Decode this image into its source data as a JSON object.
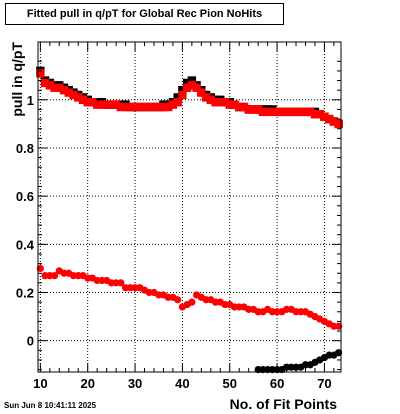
{
  "title": "Fitted pull in q/pT for Global Rec Pion NoHits",
  "footer_date": "Sun Jun  8 10:41:11 2025",
  "chart_data": {
    "type": "scatter",
    "title": "Fitted pull in q/pT for Global Rec Pion NoHits",
    "xlabel": "No. of Fit Points",
    "ylabel": "pull in q/pT",
    "xlim": [
      9.5,
      73.5
    ],
    "ylim": [
      -0.13,
      1.24
    ],
    "x_ticks": [
      10,
      20,
      30,
      40,
      50,
      60,
      70
    ],
    "y_ticks": [
      0,
      0.2,
      0.4,
      0.6,
      0.8,
      1
    ],
    "y_tick_labels": [
      "0",
      "0.2",
      "0.4",
      "0.6",
      "0.8",
      "1"
    ],
    "grid": true,
    "series": [
      {
        "color": "#000000",
        "marker": "square",
        "x": [
          10,
          11,
          12,
          13,
          14,
          15,
          16,
          17,
          18,
          19,
          20,
          21,
          22,
          23,
          24,
          25,
          26,
          27,
          28,
          29,
          30,
          31,
          32,
          33,
          34,
          35,
          36,
          37,
          38,
          39,
          40,
          41,
          42,
          43,
          44,
          45,
          46,
          47,
          48,
          49,
          50,
          51,
          52,
          53,
          54,
          55,
          56,
          57,
          58,
          59,
          60,
          61,
          62,
          63,
          64,
          65,
          66,
          67,
          68,
          69,
          70,
          71,
          72,
          73
        ],
        "y": [
          1.12,
          1.08,
          1.07,
          1.06,
          1.06,
          1.05,
          1.04,
          1.03,
          1.02,
          1.01,
          1.0,
          0.99,
          0.99,
          0.99,
          0.98,
          0.98,
          0.98,
          0.98,
          0.98,
          0.97,
          0.97,
          0.97,
          0.97,
          0.97,
          0.97,
          0.97,
          0.98,
          0.98,
          0.99,
          1.01,
          1.04,
          1.07,
          1.08,
          1.06,
          1.04,
          1.02,
          1.01,
          1.0,
          1.0,
          0.99,
          0.99,
          0.98,
          0.97,
          0.97,
          0.96,
          0.96,
          0.96,
          0.96,
          0.96,
          0.96,
          0.95,
          0.95,
          0.95,
          0.95,
          0.95,
          0.95,
          0.95,
          0.95,
          0.95,
          0.94,
          0.93,
          0.92,
          0.91,
          0.9
        ]
      },
      {
        "color": "#ff0000",
        "marker": "square",
        "x": [
          10,
          11,
          12,
          13,
          14,
          15,
          16,
          17,
          18,
          19,
          20,
          21,
          22,
          23,
          24,
          25,
          26,
          27,
          28,
          29,
          30,
          31,
          32,
          33,
          34,
          35,
          36,
          37,
          38,
          39,
          40,
          41,
          42,
          43,
          44,
          45,
          46,
          47,
          48,
          49,
          50,
          51,
          52,
          53,
          54,
          55,
          56,
          57,
          58,
          59,
          60,
          61,
          62,
          63,
          64,
          65,
          66,
          67,
          68,
          69,
          70,
          71,
          72,
          73
        ],
        "y": [
          1.11,
          1.07,
          1.06,
          1.05,
          1.05,
          1.04,
          1.03,
          1.02,
          1.01,
          1.0,
          0.99,
          0.99,
          0.98,
          0.98,
          0.98,
          0.98,
          0.98,
          0.97,
          0.97,
          0.97,
          0.97,
          0.97,
          0.97,
          0.97,
          0.97,
          0.97,
          0.97,
          0.97,
          0.98,
          0.99,
          1.02,
          1.05,
          1.06,
          1.05,
          1.03,
          1.01,
          1.0,
          0.99,
          0.99,
          0.99,
          0.98,
          0.98,
          0.97,
          0.97,
          0.96,
          0.96,
          0.96,
          0.95,
          0.95,
          0.95,
          0.95,
          0.95,
          0.95,
          0.95,
          0.95,
          0.95,
          0.95,
          0.95,
          0.94,
          0.94,
          0.93,
          0.92,
          0.91,
          0.9
        ]
      },
      {
        "color": "#ff0000",
        "marker": "circle",
        "x": [
          10,
          11,
          12,
          13,
          14,
          15,
          16,
          17,
          18,
          19,
          20,
          21,
          22,
          23,
          24,
          25,
          26,
          27,
          28,
          29,
          30,
          31,
          32,
          33,
          34,
          35,
          36,
          37,
          38,
          39,
          40,
          41,
          42,
          43,
          44,
          45,
          46,
          47,
          48,
          49,
          50,
          51,
          52,
          53,
          54,
          55,
          56,
          57,
          58,
          59,
          60,
          61,
          62,
          63,
          64,
          65,
          66,
          67,
          68,
          69,
          70,
          71,
          72,
          73
        ],
        "y": [
          0.3,
          0.27,
          0.27,
          0.27,
          0.29,
          0.28,
          0.28,
          0.27,
          0.27,
          0.27,
          0.26,
          0.26,
          0.25,
          0.25,
          0.25,
          0.24,
          0.24,
          0.24,
          0.22,
          0.22,
          0.22,
          0.22,
          0.21,
          0.2,
          0.2,
          0.19,
          0.19,
          0.18,
          0.18,
          0.17,
          0.14,
          0.15,
          0.16,
          0.19,
          0.18,
          0.17,
          0.17,
          0.16,
          0.16,
          0.15,
          0.15,
          0.14,
          0.14,
          0.14,
          0.13,
          0.13,
          0.12,
          0.12,
          0.13,
          0.12,
          0.12,
          0.12,
          0.13,
          0.13,
          0.12,
          0.12,
          0.12,
          0.11,
          0.1,
          0.09,
          0.08,
          0.07,
          0.06,
          0.06
        ]
      },
      {
        "color": "#000000",
        "marker": "circle",
        "x": [
          56,
          57,
          58,
          59,
          60,
          61,
          62,
          63,
          64,
          65,
          66,
          67,
          68,
          69,
          70,
          71,
          72,
          73
        ],
        "y": [
          -0.12,
          -0.12,
          -0.12,
          -0.12,
          -0.12,
          -0.12,
          -0.11,
          -0.11,
          -0.11,
          -0.11,
          -0.1,
          -0.1,
          -0.09,
          -0.08,
          -0.07,
          -0.06,
          -0.06,
          -0.05
        ]
      }
    ]
  }
}
